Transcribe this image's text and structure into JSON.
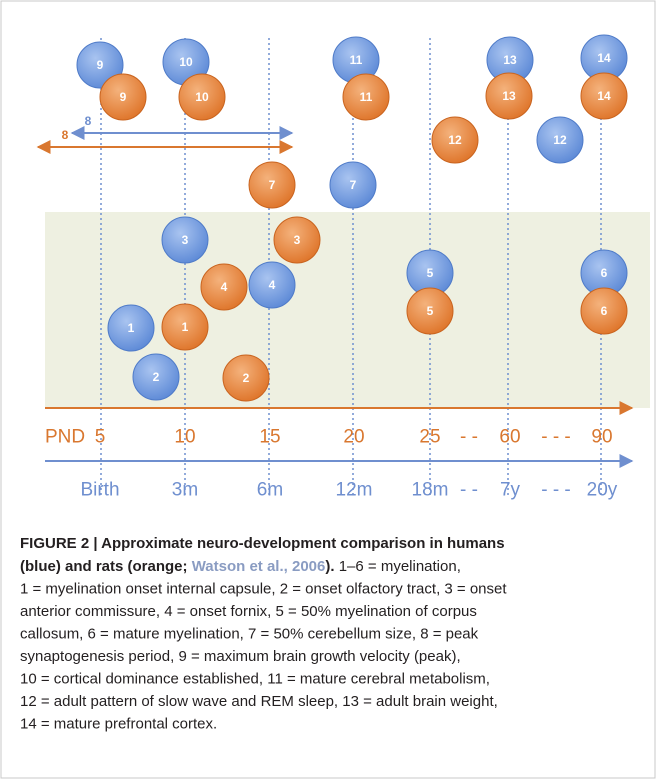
{
  "figure": {
    "nodes": {
      "human": [
        "9",
        "10",
        "11",
        "13",
        "14",
        "12",
        "7",
        "3",
        "5",
        "6",
        "4",
        "1",
        "2"
      ],
      "rat": [
        "9",
        "10",
        "11",
        "13",
        "14",
        "12",
        "7",
        "3",
        "4",
        "5",
        "6",
        "1",
        "2"
      ]
    },
    "arrows": {
      "human": "8",
      "rat": "8"
    },
    "axes": {
      "rat": {
        "label": "PND",
        "ticks": [
          "5",
          "10",
          "15",
          "20",
          "25",
          "60",
          "90"
        ],
        "breaks": [
          "- -",
          "- - -"
        ]
      },
      "human": {
        "ticks": [
          "Birth",
          "3m",
          "6m",
          "12m",
          "18m",
          "7y",
          "20y"
        ],
        "breaks": [
          "- -",
          "- - -"
        ]
      }
    },
    "caption": {
      "title": "FIGURE 2 | Approximate neuro-development comparison in humans",
      "title_cont": "(blue) and rats (orange; ",
      "citation": "Watson et al., 2006",
      "title_end": ").",
      "lines": [
        " 1–6 = myelination,",
        "1 = myelination onset internal capsule, 2 = onset olfactory tract, 3 = onset",
        "anterior commissure, 4 = onset fornix, 5 = 50% myelination of corpus",
        "callosum, 6 = mature myelination, 7 = 50% cerebellum size, 8 = peak",
        "synaptogenesis period, 9 = maximum brain growth velocity (peak),",
        "10 = cortical dominance established, 11 = mature cerebral metabolism,",
        "12 = adult pattern of slow wave and REM sleep, 13 = adult brain weight,",
        "14 = mature prefrontal cortex."
      ]
    }
  }
}
